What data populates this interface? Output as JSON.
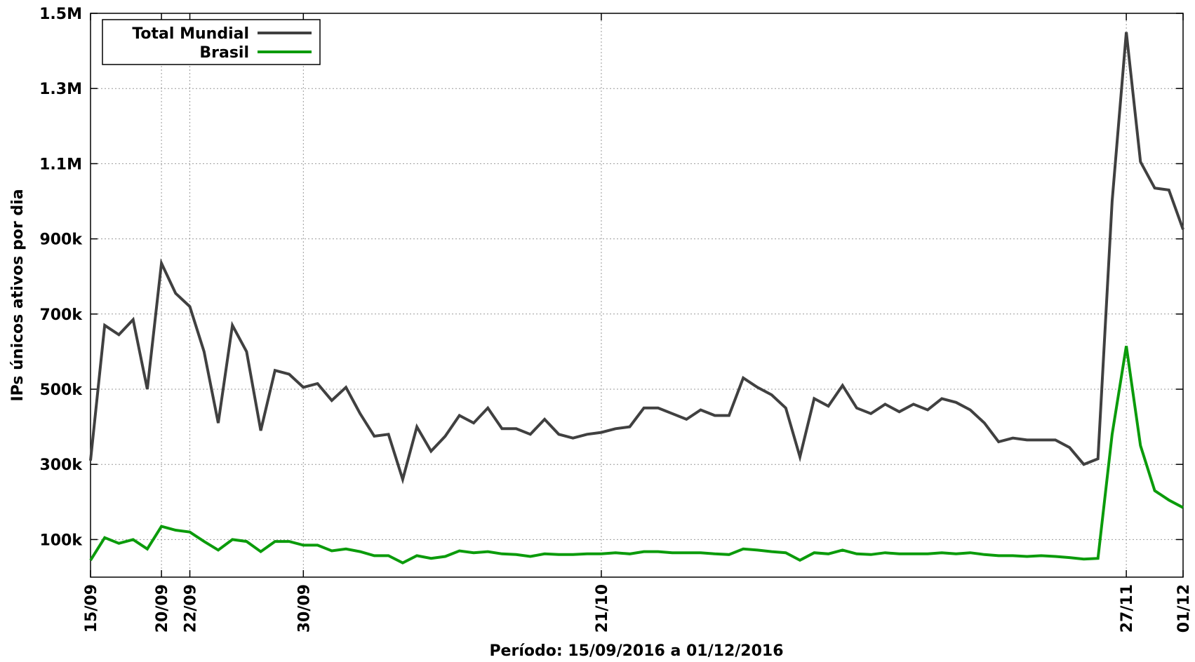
{
  "chart_data": {
    "type": "line",
    "xlabel": "Período: 15/09/2016 a 01/12/2016",
    "ylabel": "IPs únicos ativos por dia",
    "ylim": [
      0,
      1500000
    ],
    "y_ticks": [
      {
        "value": 100000,
        "label": "100k"
      },
      {
        "value": 300000,
        "label": "300k"
      },
      {
        "value": 500000,
        "label": "500k"
      },
      {
        "value": 700000,
        "label": "700k"
      },
      {
        "value": 900000,
        "label": "900k"
      },
      {
        "value": 1100000,
        "label": "1.1M"
      },
      {
        "value": 1300000,
        "label": "1.3M"
      },
      {
        "value": 1500000,
        "label": "1.5M"
      }
    ],
    "x_ticks": [
      {
        "day": 0,
        "label": "15/09"
      },
      {
        "day": 5,
        "label": "20/09"
      },
      {
        "day": 7,
        "label": "22/09"
      },
      {
        "day": 15,
        "label": "30/09"
      },
      {
        "day": 36,
        "label": "21/10"
      },
      {
        "day": 73,
        "label": "27/11"
      },
      {
        "day": 77,
        "label": "01/12"
      }
    ],
    "grid": true,
    "legend": "top-left",
    "series": [
      {
        "name": "Total Mundial",
        "color": "#404040",
        "values": [
          310000,
          670000,
          645000,
          685000,
          500000,
          835000,
          755000,
          720000,
          600000,
          410000,
          670000,
          600000,
          390000,
          550000,
          540000,
          505000,
          515000,
          470000,
          505000,
          435000,
          375000,
          380000,
          260000,
          400000,
          335000,
          375000,
          430000,
          410000,
          450000,
          395000,
          395000,
          380000,
          420000,
          380000,
          370000,
          380000,
          385000,
          395000,
          400000,
          450000,
          450000,
          435000,
          420000,
          445000,
          430000,
          430000,
          530000,
          505000,
          485000,
          450000,
          320000,
          475000,
          455000,
          510000,
          450000,
          435000,
          460000,
          440000,
          460000,
          445000,
          475000,
          465000,
          445000,
          410000,
          360000,
          370000,
          365000,
          365000,
          365000,
          345000,
          300000,
          315000,
          1000000,
          1450000,
          1105000,
          1035000,
          1030000,
          925000
        ]
      },
      {
        "name": "Brasil",
        "color": "#0b9b0b",
        "values": [
          45000,
          105000,
          90000,
          100000,
          75000,
          135000,
          125000,
          120000,
          95000,
          72000,
          100000,
          95000,
          68000,
          95000,
          95000,
          85000,
          85000,
          70000,
          75000,
          68000,
          57000,
          57000,
          38000,
          57000,
          50000,
          55000,
          70000,
          65000,
          68000,
          62000,
          60000,
          55000,
          62000,
          60000,
          60000,
          62000,
          62000,
          65000,
          62000,
          68000,
          68000,
          65000,
          65000,
          65000,
          62000,
          60000,
          75000,
          72000,
          68000,
          65000,
          45000,
          65000,
          62000,
          72000,
          62000,
          60000,
          65000,
          62000,
          62000,
          62000,
          65000,
          62000,
          65000,
          60000,
          57000,
          57000,
          55000,
          57000,
          55000,
          52000,
          48000,
          50000,
          380000,
          615000,
          350000,
          230000,
          205000,
          185000
        ]
      }
    ]
  }
}
